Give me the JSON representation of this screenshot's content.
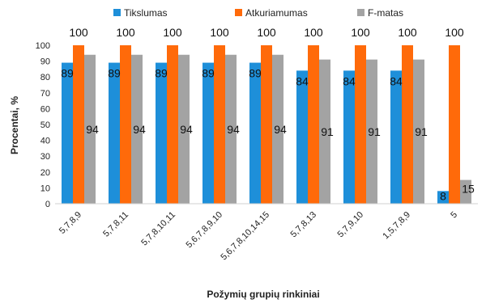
{
  "chart_data": {
    "type": "bar",
    "title": "",
    "xlabel": "Požymių grupių rinkiniai",
    "ylabel": "Procentai, %",
    "ylim": [
      0,
      100
    ],
    "yticks": [
      0,
      10,
      20,
      30,
      40,
      50,
      60,
      70,
      80,
      90,
      100
    ],
    "grid": false,
    "legend_position": "top",
    "categories": [
      "5,7,8,9",
      "5,7,8,11",
      "5,7,8,10,11",
      "5,6,7,8,9,10",
      "5,6,7,8,10,14,15",
      "5,7,8,13",
      "5,7,9,10",
      "1,5,7,8,9",
      "5"
    ],
    "series": [
      {
        "name": "Tikslumas",
        "color": "#1e8fd9",
        "values": [
          89,
          89,
          89,
          89,
          89,
          84,
          84,
          84,
          8
        ]
      },
      {
        "name": "Atkuriamumas",
        "color": "#ff6a0a",
        "values": [
          100,
          100,
          100,
          100,
          100,
          100,
          100,
          100,
          100
        ]
      },
      {
        "name": "F-matas",
        "color": "#a3a3a3",
        "values": [
          94,
          94,
          94,
          94,
          94,
          91,
          91,
          91,
          15
        ]
      }
    ]
  }
}
